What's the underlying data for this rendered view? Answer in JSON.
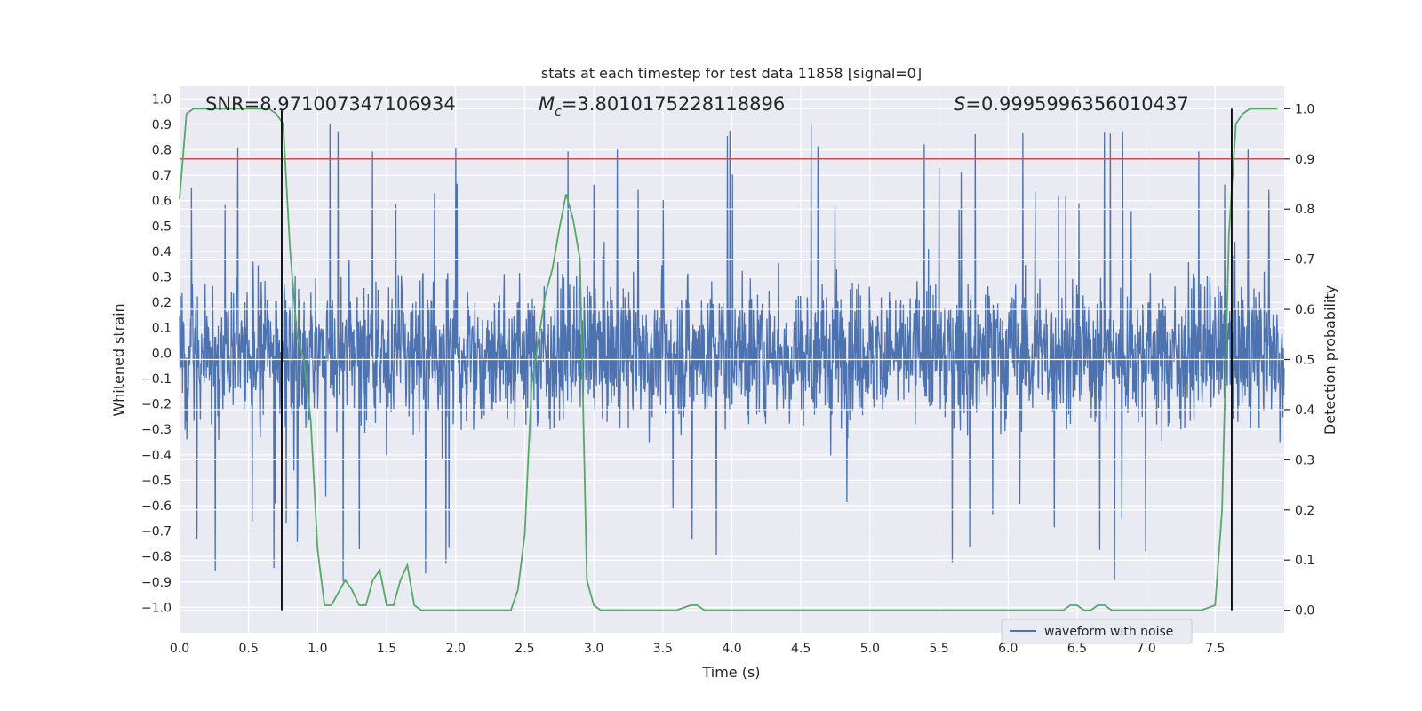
{
  "chart_data": {
    "type": "line",
    "title": "stats at each timestep for test data 11858 [signal=0]",
    "xlabel": "Time (s)",
    "ylabel": "Whitened strain",
    "y2label": "Detection probability",
    "xlim": [
      0.0,
      8.0
    ],
    "ylim": [
      -1.1,
      1.05
    ],
    "y2lim": [
      -0.045,
      1.045
    ],
    "xticks": [
      "0.0",
      "0.5",
      "1.0",
      "1.5",
      "2.0",
      "2.5",
      "3.0",
      "3.5",
      "4.0",
      "4.5",
      "5.0",
      "5.5",
      "6.0",
      "6.5",
      "7.0",
      "7.5"
    ],
    "yticks": [
      "1.0",
      "0.9",
      "0.8",
      "0.7",
      "0.6",
      "0.5",
      "0.4",
      "0.3",
      "0.2",
      "0.1",
      "0.0",
      "−0.1",
      "−0.2",
      "−0.3",
      "−0.4",
      "−0.5",
      "−0.6",
      "−0.7",
      "−0.8",
      "−0.9",
      "−1.0"
    ],
    "y2ticks": [
      "1.0",
      "0.9",
      "0.8",
      "0.7",
      "0.6",
      "0.5",
      "0.4",
      "0.3",
      "0.2",
      "0.1",
      "0.0"
    ],
    "annotations": {
      "snr": "SNR=8.971007347106934",
      "mc_symbol": "M",
      "mc_subscript": "c",
      "mc_value": "=3.8010175228118896",
      "s_symbol": "S",
      "s_value": "=0.9995996356010437"
    },
    "legend": {
      "label": "waveform with noise",
      "position": "lower-right"
    },
    "threshold_line": {
      "axis": "right",
      "value": 0.9,
      "color": "#c44e52"
    },
    "vertical_lines": [
      0.74,
      7.62
    ],
    "series": [
      {
        "name": "waveform with noise",
        "axis": "left",
        "color": "#4c72b0",
        "kind": "dense-noise",
        "x_range": [
          0.0,
          8.0
        ],
        "typical_amplitude": 0.35,
        "extreme_amplitude": 0.93
      },
      {
        "name": "detection probability",
        "axis": "right",
        "color": "#55a868",
        "x": [
          0.0,
          0.05,
          0.1,
          0.15,
          0.2,
          0.3,
          0.4,
          0.5,
          0.6,
          0.65,
          0.7,
          0.75,
          0.8,
          0.85,
          0.9,
          0.95,
          1.0,
          1.05,
          1.1,
          1.2,
          1.25,
          1.3,
          1.35,
          1.4,
          1.45,
          1.5,
          1.55,
          1.6,
          1.65,
          1.7,
          1.75,
          1.8,
          1.85,
          1.9,
          2.0,
          2.1,
          2.2,
          2.3,
          2.4,
          2.45,
          2.5,
          2.55,
          2.6,
          2.65,
          2.7,
          2.75,
          2.8,
          2.85,
          2.9,
          2.95,
          3.0,
          3.05,
          3.1,
          3.15,
          3.2,
          3.3,
          3.4,
          3.5,
          3.6,
          3.7,
          3.75,
          3.8,
          3.9,
          4.0,
          4.1,
          4.2,
          4.3,
          4.4,
          4.5,
          4.6,
          4.7,
          4.8,
          4.9,
          5.0,
          5.2,
          5.4,
          5.6,
          5.8,
          6.0,
          6.2,
          6.4,
          6.45,
          6.5,
          6.55,
          6.6,
          6.65,
          6.7,
          6.75,
          6.8,
          6.85,
          6.9,
          6.95,
          7.0,
          7.1,
          7.2,
          7.3,
          7.4,
          7.5,
          7.55,
          7.6,
          7.65,
          7.7,
          7.75,
          7.8,
          7.9,
          7.95
        ],
        "y": [
          0.82,
          0.99,
          1.0,
          1.0,
          1.0,
          1.0,
          1.0,
          1.0,
          1.0,
          1.0,
          0.99,
          0.97,
          0.72,
          0.55,
          0.5,
          0.38,
          0.12,
          0.01,
          0.01,
          0.06,
          0.04,
          0.01,
          0.01,
          0.06,
          0.08,
          0.01,
          0.01,
          0.06,
          0.09,
          0.01,
          0.0,
          0.0,
          0.0,
          0.0,
          0.0,
          0.0,
          0.0,
          0.0,
          0.0,
          0.04,
          0.15,
          0.45,
          0.54,
          0.63,
          0.68,
          0.76,
          0.83,
          0.78,
          0.7,
          0.06,
          0.01,
          0.0,
          0.0,
          0.0,
          0.0,
          0.0,
          0.0,
          0.0,
          0.0,
          0.01,
          0.01,
          0.0,
          0.0,
          0.0,
          0.0,
          0.0,
          0.0,
          0.0,
          0.0,
          0.0,
          0.0,
          0.0,
          0.0,
          0.0,
          0.0,
          0.0,
          0.0,
          0.0,
          0.0,
          0.0,
          0.0,
          0.01,
          0.01,
          0.0,
          0.0,
          0.01,
          0.01,
          0.0,
          0.0,
          0.0,
          0.0,
          0.0,
          0.0,
          0.0,
          0.0,
          0.0,
          0.0,
          0.01,
          0.2,
          0.75,
          0.97,
          0.99,
          1.0,
          1.0,
          1.0,
          1.0
        ]
      }
    ]
  }
}
